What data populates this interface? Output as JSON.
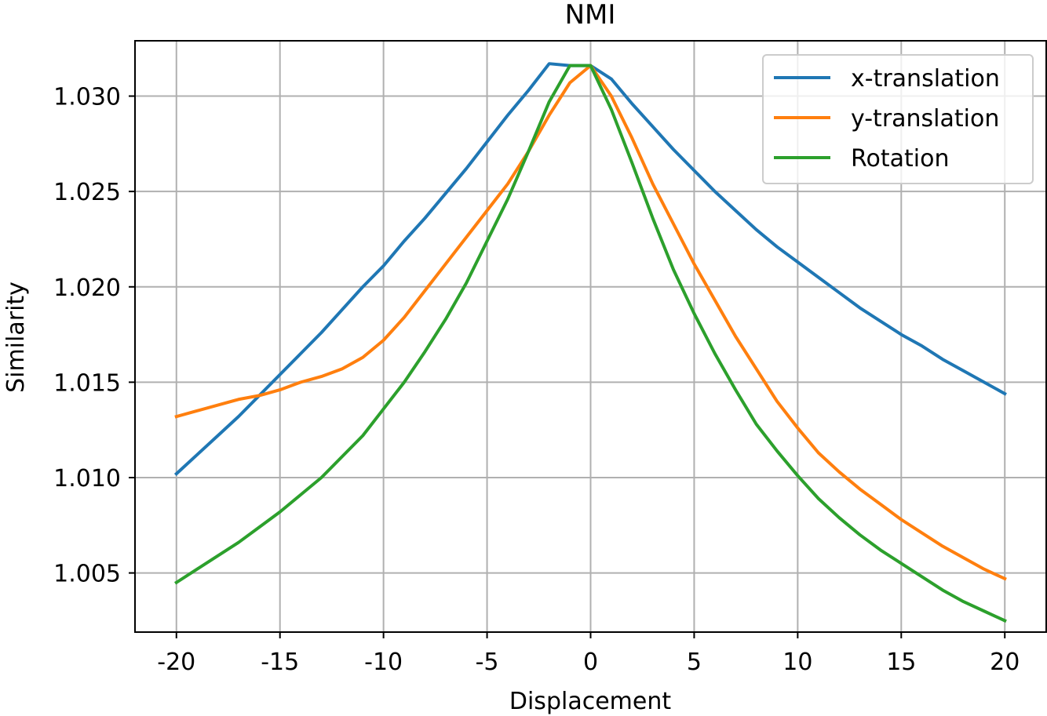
{
  "chart_data": {
    "type": "line",
    "title": "NMI",
    "xlabel": "Displacement",
    "ylabel": "Similarity",
    "xlim": [
      -22,
      22
    ],
    "ylim": [
      1.0019,
      1.0329
    ],
    "xticks": [
      -20,
      -15,
      -10,
      -5,
      0,
      5,
      10,
      15,
      20
    ],
    "xtick_labels": [
      "-20",
      "-15",
      "-10",
      "-5",
      "0",
      "5",
      "10",
      "15",
      "20"
    ],
    "yticks": [
      1.005,
      1.01,
      1.015,
      1.02,
      1.025,
      1.03
    ],
    "ytick_labels": [
      "1.005",
      "1.010",
      "1.015",
      "1.020",
      "1.025",
      "1.030"
    ],
    "grid": true,
    "legend_position": "top-right",
    "x": [
      -20,
      -19,
      -18,
      -17,
      -16,
      -15,
      -14,
      -13,
      -12,
      -11,
      -10,
      -9,
      -8,
      -7,
      -6,
      -5,
      -4,
      -3,
      -2,
      -1,
      0,
      1,
      2,
      3,
      4,
      5,
      6,
      7,
      8,
      9,
      10,
      11,
      12,
      13,
      14,
      15,
      16,
      17,
      18,
      19,
      20
    ],
    "series": [
      {
        "name": "x-translation",
        "color": "#1f77b4",
        "values": [
          1.0102,
          1.0112,
          1.0122,
          1.0132,
          1.0143,
          1.0154,
          1.0165,
          1.0176,
          1.0188,
          1.02,
          1.0211,
          1.0224,
          1.0236,
          1.0249,
          1.0262,
          1.0276,
          1.029,
          1.0303,
          1.0317,
          1.0316,
          1.0316,
          1.0309,
          1.0296,
          1.0284,
          1.0272,
          1.0261,
          1.025,
          1.024,
          1.023,
          1.0221,
          1.0213,
          1.0205,
          1.0197,
          1.0189,
          1.0182,
          1.0175,
          1.0169,
          1.0162,
          1.0156,
          1.015,
          1.0144
        ]
      },
      {
        "name": "y-translation",
        "color": "#ff7f0e",
        "values": [
          1.0132,
          1.0135,
          1.0138,
          1.0141,
          1.0143,
          1.0146,
          1.015,
          1.0153,
          1.0157,
          1.0163,
          1.0172,
          1.0184,
          1.0198,
          1.0212,
          1.0226,
          1.024,
          1.0254,
          1.0271,
          1.029,
          1.0307,
          1.0316,
          1.03,
          1.0278,
          1.0254,
          1.0233,
          1.0212,
          1.0193,
          1.0174,
          1.0157,
          1.014,
          1.0126,
          1.0113,
          1.0103,
          1.0094,
          1.0086,
          1.0078,
          1.0071,
          1.0064,
          1.0058,
          1.0052,
          1.0047
        ]
      },
      {
        "name": "Rotation",
        "color": "#2ca02c",
        "values": [
          1.0045,
          1.0052,
          1.0059,
          1.0066,
          1.0074,
          1.0082,
          1.0091,
          1.01,
          1.0111,
          1.0122,
          1.0136,
          1.015,
          1.0166,
          1.0183,
          1.0202,
          1.0224,
          1.0246,
          1.0271,
          1.0297,
          1.0316,
          1.0316,
          1.0293,
          1.0265,
          1.0236,
          1.0209,
          1.0186,
          1.0165,
          1.0146,
          1.0128,
          1.0114,
          1.0101,
          1.0089,
          1.0079,
          1.007,
          1.0062,
          1.0055,
          1.0048,
          1.0041,
          1.0035,
          1.003,
          1.0025
        ]
      }
    ]
  }
}
